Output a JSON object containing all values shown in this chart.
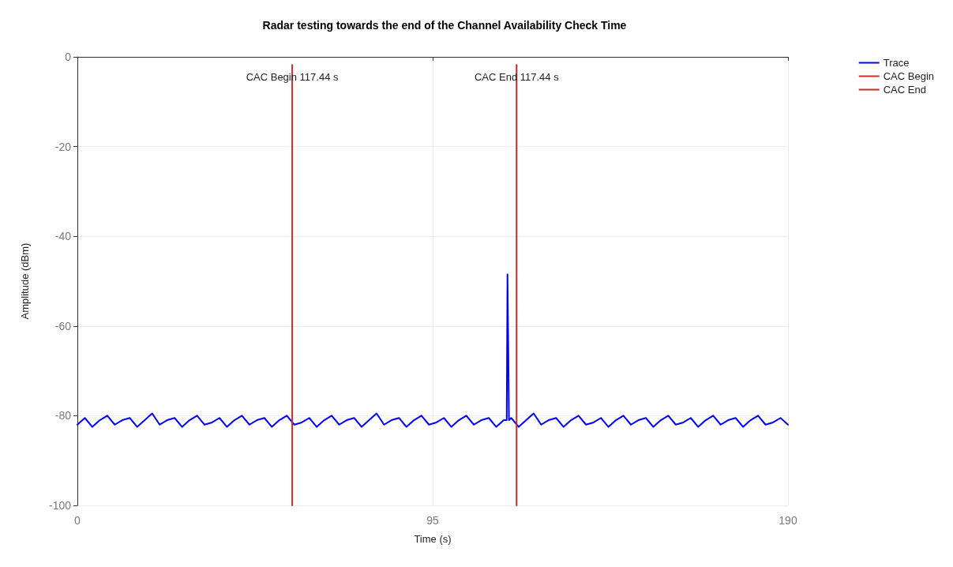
{
  "chart_data": {
    "type": "line",
    "title": "Radar testing towards the end of the Channel Availability Check Time",
    "xlabel": "Time (s)",
    "ylabel": "Amplitude (dBm)",
    "xlim": [
      0,
      190
    ],
    "xticks": [
      0,
      95,
      190
    ],
    "ylim": [
      -100,
      0
    ],
    "yticks": [
      0,
      -20,
      -40,
      -60,
      -80,
      -100
    ],
    "grid": true,
    "legend": "top right",
    "marker": "none",
    "line_style": "solid",
    "series": [
      {
        "name": "Trace",
        "color": "#0000ff",
        "x": [
          0,
          2,
          4,
          6,
          8,
          10,
          12,
          14,
          16,
          18,
          20,
          22,
          24,
          26,
          28,
          30,
          32,
          34,
          36,
          38,
          40,
          42,
          44,
          46,
          48,
          50,
          52,
          54,
          56,
          58,
          60,
          62,
          64,
          66,
          68,
          70,
          72,
          74,
          76,
          78,
          80,
          82,
          84,
          86,
          88,
          90,
          92,
          94,
          96,
          98,
          100,
          102,
          104,
          106,
          108,
          110,
          112,
          114,
          114.8,
          115,
          115.2,
          115.4,
          116,
          118,
          120,
          122,
          124,
          126,
          128,
          130,
          132,
          134,
          136,
          138,
          140,
          142,
          144,
          146,
          148,
          150,
          152,
          154,
          156,
          158,
          160,
          162,
          164,
          166,
          168,
          170,
          172,
          174,
          176,
          178,
          180,
          182,
          184,
          186,
          188,
          190
        ],
        "values": [
          -82,
          -80.5,
          -82.5,
          -81,
          -80,
          -82,
          -81,
          -80.5,
          -82.5,
          -81,
          -79.5,
          -82,
          -81,
          -80.5,
          -82.5,
          -81,
          -80,
          -82,
          -81.5,
          -80.5,
          -82.5,
          -81,
          -80,
          -82,
          -81,
          -80.5,
          -82.5,
          -81,
          -80,
          -82,
          -81.5,
          -80.5,
          -82.5,
          -81,
          -80,
          -82,
          -81,
          -80.5,
          -82.5,
          -81,
          -79.5,
          -82,
          -81,
          -80.5,
          -82.5,
          -81,
          -80,
          -82,
          -81.5,
          -80.5,
          -82.5,
          -81,
          -80,
          -82,
          -81,
          -80.5,
          -82.5,
          -81,
          -81,
          -48.5,
          -64,
          -81,
          -80.5,
          -82.5,
          -81,
          -79.5,
          -82,
          -81,
          -80.5,
          -82.5,
          -81,
          -80,
          -82,
          -81.5,
          -80.5,
          -82.5,
          -81,
          -80,
          -82,
          -81,
          -80.5,
          -82.5,
          -81,
          -80,
          -82,
          -81.5,
          -80.5,
          -82.5,
          -81,
          -80,
          -82,
          -81,
          -80.5,
          -82.5,
          -81,
          -80,
          -82,
          -81.5,
          -80.5,
          -82
        ]
      },
      {
        "name": "CAC Begin",
        "color": "#d42a2a",
        "x": [
          57.44,
          57.44
        ],
        "values": [
          -1.8,
          -100
        ]
      },
      {
        "name": "CAC End",
        "color": "#c62828",
        "x": [
          117.44,
          117.44
        ],
        "values": [
          -1.8,
          -100
        ]
      }
    ],
    "annotations": [
      {
        "text": "CAC Begin 117.44 s",
        "x": 57.44,
        "y": -4.5
      },
      {
        "text": "CAC End 117.44 s",
        "x": 117.44,
        "y": -4.5
      }
    ]
  }
}
